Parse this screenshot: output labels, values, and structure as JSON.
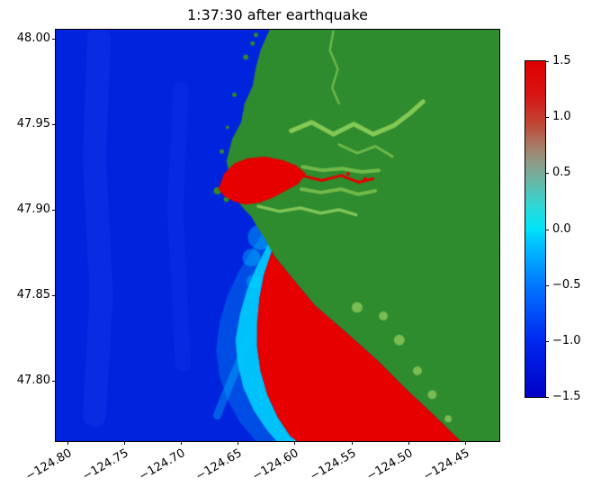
{
  "figure": {
    "title": "1:37:30 after earthquake"
  },
  "chart_data": {
    "type": "heatmap",
    "title": "1:37:30 after earthquake",
    "xlabel": "",
    "ylabel": "",
    "grid": false,
    "xlim": [
      -124.81,
      -124.42
    ],
    "ylim": [
      47.765,
      48.005
    ],
    "x_ticks": [
      {
        "v": -124.8,
        "label": "−124.80"
      },
      {
        "v": -124.75,
        "label": "−124.75"
      },
      {
        "v": -124.7,
        "label": "−124.70"
      },
      {
        "v": -124.65,
        "label": "−124.65"
      },
      {
        "v": -124.6,
        "label": "−124.60"
      },
      {
        "v": -124.55,
        "label": "−124.55"
      },
      {
        "v": -124.5,
        "label": "−124.50"
      },
      {
        "v": -124.45,
        "label": "−124.45"
      }
    ],
    "y_ticks": [
      {
        "v": 48.0,
        "label": "48.00"
      },
      {
        "v": 47.95,
        "label": "47.95"
      },
      {
        "v": 47.9,
        "label": "47.90"
      },
      {
        "v": 47.85,
        "label": "47.85"
      },
      {
        "v": 47.8,
        "label": "47.80"
      }
    ],
    "colorbar": {
      "vmin": -1.5,
      "vmax": 1.5,
      "ticks": [
        {
          "v": 1.5,
          "label": "1.5"
        },
        {
          "v": 1.0,
          "label": "1.0"
        },
        {
          "v": 0.5,
          "label": "0.5"
        },
        {
          "v": 0.0,
          "label": "0.0"
        },
        {
          "v": -0.5,
          "label": "−0.5"
        },
        {
          "v": -1.0,
          "label": "−1.0"
        },
        {
          "v": -1.5,
          "label": "−1.5"
        }
      ],
      "stops": [
        {
          "v": -1.5,
          "color": "#0000c4"
        },
        {
          "v": -1.0,
          "color": "#0028f0"
        },
        {
          "v": -0.5,
          "color": "#0077ff"
        },
        {
          "v": -0.1,
          "color": "#00c8ff"
        },
        {
          "v": 0.0,
          "color": "#00e4f8"
        },
        {
          "v": 0.2,
          "color": "#2fd8d8"
        },
        {
          "v": 0.45,
          "color": "#6fb2a2"
        },
        {
          "v": 0.6,
          "color": "#8f9a84"
        },
        {
          "v": 0.75,
          "color": "#a87a66"
        },
        {
          "v": 0.95,
          "color": "#c24434"
        },
        {
          "v": 1.2,
          "color": "#d81414"
        },
        {
          "v": 1.5,
          "color": "#e00000"
        }
      ]
    },
    "colors": {
      "ocean": "#0024dd",
      "land": "#2e8b2e",
      "wave_crest": "#e60000",
      "wave_front": "#00e2ff",
      "marsh": "#8fcf5a"
    },
    "map_layers": [
      {
        "name": "ocean",
        "type": "fill",
        "color": "#0024dd"
      },
      {
        "name": "ocean-sheen-1",
        "type": "polyline",
        "color": "#3355ff",
        "opacity": 0.18,
        "width": 26,
        "points": [
          [
            -124.772,
            48.0
          ],
          [
            -124.776,
            47.93
          ],
          [
            -124.77,
            47.85
          ],
          [
            -124.776,
            47.78
          ]
        ]
      },
      {
        "name": "ocean-sheen-2",
        "type": "polyline",
        "color": "#3355ff",
        "opacity": 0.12,
        "width": 18,
        "points": [
          [
            -124.7,
            47.97
          ],
          [
            -124.705,
            47.9
          ],
          [
            -124.698,
            47.81
          ]
        ]
      },
      {
        "name": "wavefront-halo",
        "type": "polygon",
        "color": "#00c8ff",
        "opacity": 0.25,
        "points": [
          [
            -124.62,
            47.876
          ],
          [
            -124.627,
            47.862
          ],
          [
            -124.631,
            47.848
          ],
          [
            -124.633,
            47.834
          ],
          [
            -124.633,
            47.82
          ],
          [
            -124.63,
            47.806
          ],
          [
            -124.624,
            47.792
          ],
          [
            -124.615,
            47.779
          ],
          [
            -124.604,
            47.768
          ],
          [
            -124.598,
            47.765
          ],
          [
            -124.634,
            47.765
          ],
          [
            -124.648,
            47.776
          ],
          [
            -124.659,
            47.789
          ],
          [
            -124.666,
            47.803
          ],
          [
            -124.669,
            47.818
          ],
          [
            -124.666,
            47.834
          ],
          [
            -124.659,
            47.85
          ],
          [
            -124.649,
            47.864
          ],
          [
            -124.637,
            47.877
          ],
          [
            -124.626,
            47.889
          ],
          [
            -124.617,
            47.888
          ]
        ]
      },
      {
        "name": "wavefront-band",
        "type": "polygon",
        "color": "#00e2ff",
        "opacity": 0.78,
        "points": [
          [
            -124.62,
            47.876
          ],
          [
            -124.627,
            47.862
          ],
          [
            -124.631,
            47.848
          ],
          [
            -124.633,
            47.834
          ],
          [
            -124.633,
            47.82
          ],
          [
            -124.63,
            47.806
          ],
          [
            -124.624,
            47.792
          ],
          [
            -124.615,
            47.779
          ],
          [
            -124.604,
            47.768
          ],
          [
            -124.598,
            47.765
          ],
          [
            -124.616,
            47.765
          ],
          [
            -124.625,
            47.772
          ],
          [
            -124.636,
            47.783
          ],
          [
            -124.645,
            47.796
          ],
          [
            -124.65,
            47.81
          ],
          [
            -124.652,
            47.824
          ],
          [
            -124.648,
            47.839
          ],
          [
            -124.642,
            47.853
          ],
          [
            -124.634,
            47.866
          ],
          [
            -124.624,
            47.879
          ],
          [
            -124.62,
            47.881
          ]
        ]
      },
      {
        "name": "wavefront-bloom",
        "type": "dots",
        "color": "#00dcff",
        "opacity": 0.35,
        "points": [
          [
            -124.63,
            47.884,
            14
          ],
          [
            -124.638,
            47.872,
            10
          ],
          [
            -124.625,
            47.893,
            9
          ],
          [
            -124.636,
            47.858,
            8
          ]
        ]
      },
      {
        "name": "wavefront-streak-1",
        "type": "polyline",
        "color": "#00ccff",
        "opacity": 0.35,
        "width": 9,
        "points": [
          [
            -124.627,
            47.845
          ],
          [
            -124.648,
            47.812
          ],
          [
            -124.661,
            47.792
          ],
          [
            -124.668,
            47.78
          ]
        ]
      },
      {
        "name": "wavefront-streak-2",
        "type": "polyline",
        "color": "#00ccff",
        "opacity": 0.2,
        "width": 5,
        "points": [
          [
            -124.636,
            47.8
          ],
          [
            -124.618,
            47.778
          ],
          [
            -124.607,
            47.766
          ]
        ]
      },
      {
        "name": "land",
        "type": "polygon",
        "color": "#2e8b2e",
        "points": [
          [
            -124.622,
            48.005
          ],
          [
            -124.63,
            47.993
          ],
          [
            -124.634,
            47.983
          ],
          [
            -124.637,
            47.972
          ],
          [
            -124.644,
            47.962
          ],
          [
            -124.647,
            47.951
          ],
          [
            -124.655,
            47.941
          ],
          [
            -124.66,
            47.928
          ],
          [
            -124.655,
            47.915
          ],
          [
            -124.65,
            47.905
          ],
          [
            -124.644,
            47.9
          ],
          [
            -124.638,
            47.896
          ],
          [
            -124.634,
            47.891
          ],
          [
            -124.626,
            47.883
          ],
          [
            -124.618,
            47.873
          ],
          [
            -124.602,
            47.86
          ],
          [
            -124.582,
            47.844
          ],
          [
            -124.554,
            47.828
          ],
          [
            -124.527,
            47.812
          ],
          [
            -124.503,
            47.796
          ],
          [
            -124.479,
            47.781
          ],
          [
            -124.454,
            47.765
          ],
          [
            -124.42,
            47.765
          ],
          [
            -124.42,
            48.005
          ]
        ]
      },
      {
        "name": "coast-islets",
        "type": "dots",
        "color": "#2e8b2e",
        "points": [
          [
            -124.668,
            47.911,
            4
          ],
          [
            -124.66,
            47.906,
            3
          ],
          [
            -124.643,
            47.989,
            3
          ],
          [
            -124.637,
            47.997,
            2.5
          ],
          [
            -124.653,
            47.967,
            2.5
          ],
          [
            -124.659,
            47.948,
            2
          ],
          [
            -124.664,
            47.934,
            2.5
          ],
          [
            -124.634,
            48.002,
            2.5
          ]
        ]
      },
      {
        "name": "wave-crest-region",
        "type": "polygon",
        "color": "#e60000",
        "points": [
          [
            -124.62,
            47.876
          ],
          [
            -124.627,
            47.862
          ],
          [
            -124.631,
            47.848
          ],
          [
            -124.633,
            47.834
          ],
          [
            -124.633,
            47.82
          ],
          [
            -124.63,
            47.806
          ],
          [
            -124.624,
            47.792
          ],
          [
            -124.615,
            47.779
          ],
          [
            -124.604,
            47.768
          ],
          [
            -124.598,
            47.765
          ],
          [
            -124.454,
            47.765
          ],
          [
            -124.479,
            47.781
          ],
          [
            -124.503,
            47.796
          ],
          [
            -124.527,
            47.812
          ],
          [
            -124.554,
            47.828
          ],
          [
            -124.582,
            47.844
          ],
          [
            -124.602,
            47.86
          ],
          [
            -124.618,
            47.873
          ]
        ]
      },
      {
        "name": "harbor-surge",
        "type": "polygon",
        "color": "#e60000",
        "points": [
          [
            -124.667,
            47.912
          ],
          [
            -124.662,
            47.921
          ],
          [
            -124.653,
            47.927
          ],
          [
            -124.641,
            47.93
          ],
          [
            -124.626,
            47.931
          ],
          [
            -124.611,
            47.929
          ],
          [
            -124.599,
            47.926
          ],
          [
            -124.59,
            47.921
          ],
          [
            -124.597,
            47.915
          ],
          [
            -124.608,
            47.911
          ],
          [
            -124.619,
            47.907
          ],
          [
            -124.631,
            47.904
          ],
          [
            -124.644,
            47.903
          ],
          [
            -124.654,
            47.905
          ],
          [
            -124.662,
            47.908
          ]
        ]
      },
      {
        "name": "harbor-channel-surge",
        "type": "polyline",
        "color": "#e60000",
        "width": 3,
        "points": [
          [
            -124.594,
            47.92
          ],
          [
            -124.576,
            47.917
          ],
          [
            -124.559,
            47.92
          ],
          [
            -124.544,
            47.916
          ],
          [
            -124.531,
            47.918
          ]
        ]
      },
      {
        "name": "estuary-channel-north",
        "type": "polyline",
        "color": "#8fcf5a",
        "opacity": 0.9,
        "width": 5,
        "points": [
          [
            -124.603,
            47.946
          ],
          [
            -124.585,
            47.951
          ],
          [
            -124.566,
            47.944
          ],
          [
            -124.548,
            47.95
          ],
          [
            -124.531,
            47.944
          ],
          [
            -124.513,
            47.949
          ],
          [
            -124.499,
            47.956
          ],
          [
            -124.487,
            47.963
          ]
        ]
      },
      {
        "name": "estuary-branch",
        "type": "polyline",
        "color": "#7cc24e",
        "opacity": 0.8,
        "width": 3,
        "points": [
          [
            -124.561,
            47.938
          ],
          [
            -124.545,
            47.933
          ],
          [
            -124.529,
            47.937
          ],
          [
            -124.514,
            47.931
          ]
        ]
      },
      {
        "name": "river-north",
        "type": "polyline",
        "color": "#6fbf4a",
        "opacity": 0.9,
        "width": 2.5,
        "points": [
          [
            -124.566,
            48.004
          ],
          [
            -124.569,
            47.993
          ],
          [
            -124.562,
            47.982
          ],
          [
            -124.567,
            47.971
          ],
          [
            -124.561,
            47.962
          ]
        ]
      },
      {
        "name": "marsh-north-shore",
        "type": "polyline",
        "color": "#7cc24e",
        "opacity": 0.85,
        "width": 4,
        "points": [
          [
            -124.593,
            47.925
          ],
          [
            -124.576,
            47.923
          ],
          [
            -124.558,
            47.924
          ],
          [
            -124.541,
            47.922
          ],
          [
            -124.526,
            47.923
          ]
        ]
      },
      {
        "name": "marsh-south-shore",
        "type": "polyline",
        "color": "#7cc24e",
        "opacity": 0.85,
        "width": 4,
        "points": [
          [
            -124.594,
            47.912
          ],
          [
            -124.577,
            47.91
          ],
          [
            -124.559,
            47.912
          ],
          [
            -124.544,
            47.909
          ],
          [
            -124.529,
            47.911
          ]
        ]
      },
      {
        "name": "estuary-channel-south",
        "type": "polyline",
        "color": "#8fcf5a",
        "opacity": 0.85,
        "width": 3.5,
        "points": [
          [
            -124.632,
            47.902
          ],
          [
            -124.613,
            47.899
          ],
          [
            -124.595,
            47.901
          ],
          [
            -124.577,
            47.898
          ],
          [
            -124.561,
            47.9
          ],
          [
            -124.546,
            47.897
          ]
        ]
      },
      {
        "name": "coastal-marsh-south",
        "type": "dots",
        "color": "#8cc85a",
        "opacity": 0.8,
        "points": [
          [
            -124.545,
            47.843,
            6
          ],
          [
            -124.522,
            47.838,
            5
          ],
          [
            -124.508,
            47.824,
            6
          ],
          [
            -124.492,
            47.806,
            5
          ],
          [
            -124.479,
            47.792,
            5
          ],
          [
            -124.465,
            47.778,
            4
          ]
        ]
      },
      {
        "name": "wave-specks",
        "type": "dots",
        "color": "#e60000",
        "points": [
          [
            -124.47,
            47.769,
            4
          ],
          [
            -124.48,
            47.773,
            2.5
          ],
          [
            -124.553,
            47.921,
            2
          ],
          [
            -124.538,
            47.918,
            2
          ]
        ]
      }
    ]
  }
}
